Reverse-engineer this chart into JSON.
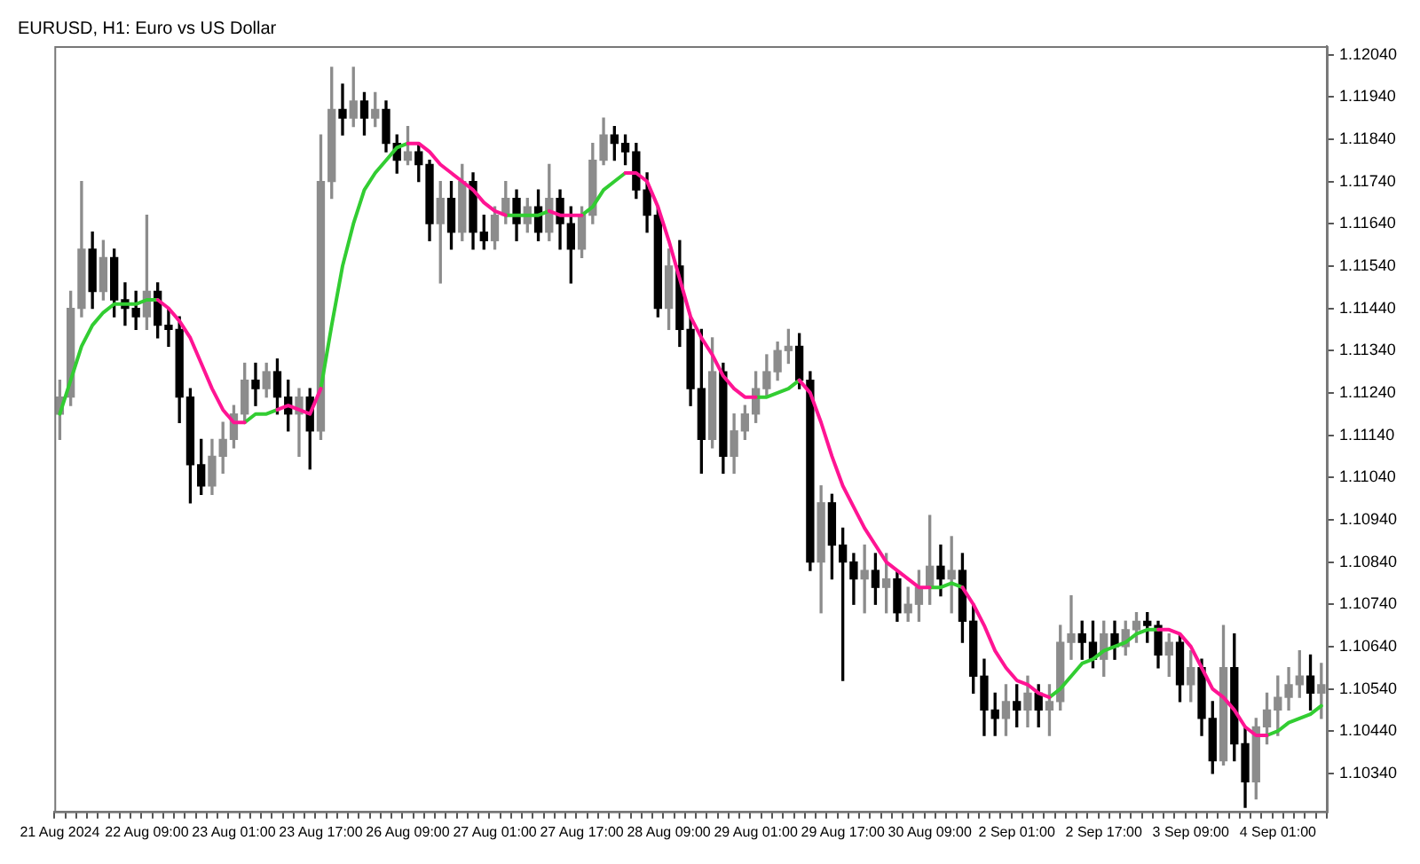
{
  "chart_data": {
    "type": "candlestick",
    "title": "EURUSD, H1: Euro vs US Dollar",
    "categories": [
      "21 Aug 2024",
      null,
      null,
      null,
      null,
      null,
      null,
      null,
      "22 Aug 09:00",
      null,
      null,
      null,
      null,
      null,
      null,
      null,
      "23 Aug 01:00",
      null,
      null,
      null,
      null,
      null,
      null,
      null,
      "23 Aug 17:00",
      null,
      null,
      null,
      null,
      null,
      null,
      null,
      "26 Aug 09:00",
      null,
      null,
      null,
      null,
      null,
      null,
      null,
      "27 Aug 01:00",
      null,
      null,
      null,
      null,
      null,
      null,
      null,
      "27 Aug 17:00",
      null,
      null,
      null,
      null,
      null,
      null,
      null,
      "28 Aug 09:00",
      null,
      null,
      null,
      null,
      null,
      null,
      null,
      "29 Aug 01:00",
      null,
      null,
      null,
      null,
      null,
      null,
      null,
      "29 Aug 17:00",
      null,
      null,
      null,
      null,
      null,
      null,
      null,
      "30 Aug 09:00",
      null,
      null,
      null,
      null,
      null,
      null,
      null,
      "2 Sep 01:00",
      null,
      null,
      null,
      null,
      null,
      null,
      null,
      "2 Sep 17:00",
      null,
      null,
      null,
      null,
      null,
      null,
      null,
      "3 Sep 09:00",
      null,
      null,
      null,
      null,
      null,
      null,
      null,
      "4 Sep 01:00",
      null,
      null,
      null,
      null
    ],
    "ohlc": [
      [
        1.1119,
        1.1127,
        1.1113,
        1.1123
      ],
      [
        1.1123,
        1.1148,
        1.1121,
        1.1144
      ],
      [
        1.1144,
        1.1174,
        1.1142,
        1.1158
      ],
      [
        1.1158,
        1.1162,
        1.1144,
        1.1148
      ],
      [
        1.1148,
        1.116,
        1.1146,
        1.1156
      ],
      [
        1.1156,
        1.1158,
        1.1142,
        1.1146
      ],
      [
        1.1146,
        1.115,
        1.114,
        1.1144
      ],
      [
        1.1144,
        1.1148,
        1.1139,
        1.1142
      ],
      [
        1.1142,
        1.1166,
        1.1139,
        1.1148
      ],
      [
        1.1148,
        1.115,
        1.1137,
        1.114
      ],
      [
        1.114,
        1.1144,
        1.1135,
        1.1139
      ],
      [
        1.1139,
        1.1142,
        1.1117,
        1.1123
      ],
      [
        1.1123,
        1.1125,
        1.1098,
        1.1107
      ],
      [
        1.1107,
        1.1113,
        1.11,
        1.1102
      ],
      [
        1.1102,
        1.1113,
        1.11,
        1.1109
      ],
      [
        1.1109,
        1.1117,
        1.1105,
        1.1113
      ],
      [
        1.1113,
        1.1121,
        1.1111,
        1.1119
      ],
      [
        1.1119,
        1.1131,
        1.1117,
        1.1127
      ],
      [
        1.1127,
        1.1131,
        1.1121,
        1.1125
      ],
      [
        1.1125,
        1.1131,
        1.1123,
        1.1129
      ],
      [
        1.1129,
        1.1132,
        1.1119,
        1.1123
      ],
      [
        1.1123,
        1.1127,
        1.1115,
        1.1119
      ],
      [
        1.1119,
        1.1125,
        1.1109,
        1.1123
      ],
      [
        1.1123,
        1.1125,
        1.1106,
        1.1115
      ],
      [
        1.1115,
        1.1185,
        1.1113,
        1.1174
      ],
      [
        1.1174,
        1.1201,
        1.117,
        1.1191
      ],
      [
        1.1191,
        1.1197,
        1.1185,
        1.1189
      ],
      [
        1.1189,
        1.1201,
        1.1187,
        1.1193
      ],
      [
        1.1193,
        1.1195,
        1.1185,
        1.1189
      ],
      [
        1.1189,
        1.1195,
        1.1187,
        1.1191
      ],
      [
        1.1191,
        1.1193,
        1.1181,
        1.1183
      ],
      [
        1.1183,
        1.1185,
        1.1176,
        1.1179
      ],
      [
        1.1179,
        1.1187,
        1.1178,
        1.1181
      ],
      [
        1.1181,
        1.1183,
        1.1174,
        1.1178
      ],
      [
        1.1178,
        1.1179,
        1.116,
        1.1164
      ],
      [
        1.1164,
        1.1174,
        1.115,
        1.117
      ],
      [
        1.117,
        1.1174,
        1.1158,
        1.1162
      ],
      [
        1.1162,
        1.1178,
        1.116,
        1.1174
      ],
      [
        1.1174,
        1.1176,
        1.1158,
        1.1162
      ],
      [
        1.1162,
        1.1166,
        1.1158,
        1.116
      ],
      [
        1.116,
        1.1168,
        1.1158,
        1.1166
      ],
      [
        1.1166,
        1.1174,
        1.1164,
        1.117
      ],
      [
        1.117,
        1.1172,
        1.116,
        1.1164
      ],
      [
        1.1164,
        1.117,
        1.1162,
        1.1168
      ],
      [
        1.1168,
        1.1172,
        1.116,
        1.1162
      ],
      [
        1.1162,
        1.1178,
        1.116,
        1.117
      ],
      [
        1.117,
        1.1172,
        1.1158,
        1.1164
      ],
      [
        1.1164,
        1.1168,
        1.115,
        1.1158
      ],
      [
        1.1158,
        1.1168,
        1.1156,
        1.1166
      ],
      [
        1.1166,
        1.1183,
        1.1164,
        1.1179
      ],
      [
        1.1179,
        1.1189,
        1.1178,
        1.1185
      ],
      [
        1.1185,
        1.1187,
        1.1179,
        1.1183
      ],
      [
        1.1183,
        1.1185,
        1.1178,
        1.1181
      ],
      [
        1.1181,
        1.1183,
        1.117,
        1.1172
      ],
      [
        1.1172,
        1.1176,
        1.1162,
        1.1166
      ],
      [
        1.1166,
        1.1168,
        1.1142,
        1.1144
      ],
      [
        1.1144,
        1.1158,
        1.1139,
        1.1154
      ],
      [
        1.1154,
        1.116,
        1.1135,
        1.1139
      ],
      [
        1.1139,
        1.1142,
        1.1121,
        1.1125
      ],
      [
        1.1125,
        1.1139,
        1.1105,
        1.1113
      ],
      [
        1.1113,
        1.1137,
        1.1111,
        1.1129
      ],
      [
        1.1129,
        1.1131,
        1.1105,
        1.1109
      ],
      [
        1.1109,
        1.1119,
        1.1105,
        1.1115
      ],
      [
        1.1115,
        1.1121,
        1.1113,
        1.1119
      ],
      [
        1.1119,
        1.1129,
        1.1117,
        1.1125
      ],
      [
        1.1125,
        1.1133,
        1.1123,
        1.1129
      ],
      [
        1.1129,
        1.1136,
        1.1127,
        1.1134
      ],
      [
        1.1134,
        1.1139,
        1.1131,
        1.1135
      ],
      [
        1.1135,
        1.1138,
        1.1125,
        1.1127
      ],
      [
        1.1127,
        1.1129,
        1.1082,
        1.1084
      ],
      [
        1.1084,
        1.1102,
        1.1072,
        1.1098
      ],
      [
        1.1098,
        1.11,
        1.108,
        1.1088
      ],
      [
        1.1088,
        1.1092,
        1.1056,
        1.1084
      ],
      [
        1.1084,
        1.1086,
        1.1074,
        1.108
      ],
      [
        1.108,
        1.1088,
        1.1072,
        1.1082
      ],
      [
        1.1082,
        1.1086,
        1.1074,
        1.1078
      ],
      [
        1.1078,
        1.1086,
        1.1072,
        1.108
      ],
      [
        1.108,
        1.1082,
        1.107,
        1.1072
      ],
      [
        1.1072,
        1.1078,
        1.107,
        1.1074
      ],
      [
        1.1074,
        1.1082,
        1.107,
        1.1078
      ],
      [
        1.1078,
        1.1095,
        1.1074,
        1.1083
      ],
      [
        1.1083,
        1.1088,
        1.1076,
        1.108
      ],
      [
        1.108,
        1.109,
        1.1072,
        1.1082
      ],
      [
        1.1082,
        1.1086,
        1.1065,
        1.107
      ],
      [
        1.107,
        1.1074,
        1.1053,
        1.1057
      ],
      [
        1.1057,
        1.1061,
        1.1043,
        1.1049
      ],
      [
        1.1049,
        1.1053,
        1.1043,
        1.1047
      ],
      [
        1.1047,
        1.1055,
        1.1043,
        1.1051
      ],
      [
        1.1051,
        1.1055,
        1.1045,
        1.1049
      ],
      [
        1.1049,
        1.1057,
        1.1045,
        1.1053
      ],
      [
        1.1053,
        1.1055,
        1.1045,
        1.1049
      ],
      [
        1.1049,
        1.1055,
        1.1043,
        1.1051
      ],
      [
        1.1051,
        1.1069,
        1.1049,
        1.1065
      ],
      [
        1.1065,
        1.1076,
        1.1061,
        1.1067
      ],
      [
        1.1067,
        1.107,
        1.1061,
        1.1065
      ],
      [
        1.1065,
        1.107,
        1.1059,
        1.1061
      ],
      [
        1.1061,
        1.107,
        1.1057,
        1.1067
      ],
      [
        1.1067,
        1.107,
        1.1061,
        1.1064
      ],
      [
        1.1064,
        1.107,
        1.1062,
        1.1068
      ],
      [
        1.1068,
        1.1072,
        1.1065,
        1.107
      ],
      [
        1.107,
        1.1072,
        1.1065,
        1.1069
      ],
      [
        1.1069,
        1.107,
        1.1059,
        1.1062
      ],
      [
        1.1062,
        1.1067,
        1.1057,
        1.1065
      ],
      [
        1.1065,
        1.1067,
        1.1051,
        1.1055
      ],
      [
        1.1055,
        1.1063,
        1.1051,
        1.1059
      ],
      [
        1.1059,
        1.1061,
        1.1043,
        1.1047
      ],
      [
        1.1047,
        1.1051,
        1.1034,
        1.1037
      ],
      [
        1.1037,
        1.1069,
        1.1036,
        1.1059
      ],
      [
        1.1059,
        1.1067,
        1.1037,
        1.1041
      ],
      [
        1.1041,
        1.1045,
        1.1026,
        1.1032
      ],
      [
        1.1032,
        1.1047,
        1.1028,
        1.1045
      ],
      [
        1.1045,
        1.1053,
        1.1041,
        1.1049
      ],
      [
        1.1049,
        1.1057,
        1.1043,
        1.1052
      ],
      [
        1.1052,
        1.1059,
        1.1049,
        1.1055
      ],
      [
        1.1055,
        1.1063,
        1.1052,
        1.1057
      ],
      [
        1.1057,
        1.1062,
        1.1049,
        1.1053
      ],
      [
        1.1053,
        1.106,
        1.1047,
        1.1055
      ]
    ],
    "series": [
      {
        "type": "line",
        "color": "#32cd32",
        "values": [
          1.1119,
          1.1127,
          1.1135,
          1.114,
          1.1143,
          1.1145,
          1.1145,
          1.1145,
          1.1146,
          1.1146,
          null,
          null,
          null,
          null,
          null,
          null,
          null,
          1.1117,
          1.1119,
          1.1119,
          1.112,
          null,
          null,
          null,
          1.1125,
          1.114,
          1.1154,
          1.1164,
          1.1172,
          1.1176,
          1.1179,
          1.1182,
          1.1183,
          null,
          null,
          null,
          null,
          null,
          null,
          null,
          null,
          1.1166,
          1.1166,
          1.1166,
          1.1166,
          1.1167,
          null,
          null,
          1.1166,
          1.1168,
          1.1172,
          1.1174,
          1.1176,
          null,
          null,
          null,
          null,
          null,
          null,
          null,
          null,
          null,
          null,
          null,
          1.1123,
          1.1123,
          1.1124,
          1.1125,
          1.1127,
          null,
          null,
          null,
          null,
          null,
          null,
          null,
          null,
          null,
          null,
          null,
          1.1078,
          1.1078,
          1.1079,
          1.1078,
          null,
          null,
          null,
          null,
          null,
          null,
          null,
          1.1052,
          1.1054,
          1.1057,
          1.106,
          1.1061,
          1.1063,
          1.1064,
          1.1065,
          1.1067,
          1.1068,
          1.1068,
          null,
          null,
          null,
          null,
          null,
          null,
          null,
          null,
          null,
          1.1043,
          1.1044,
          1.1046,
          1.1047,
          1.1048,
          1.105
        ]
      },
      {
        "type": "line",
        "color": "#ff1493",
        "values": [
          null,
          null,
          null,
          null,
          null,
          null,
          null,
          null,
          null,
          1.1146,
          1.1144,
          1.1141,
          1.1137,
          1.1131,
          1.1125,
          1.112,
          1.1117,
          1.1117,
          null,
          null,
          1.112,
          1.1121,
          1.112,
          1.1119,
          1.1125,
          null,
          null,
          null,
          null,
          null,
          null,
          null,
          1.1183,
          1.1183,
          1.1181,
          1.1178,
          1.1176,
          1.1174,
          1.1172,
          1.1169,
          1.1167,
          1.1166,
          null,
          null,
          null,
          1.1167,
          1.1166,
          1.1166,
          1.1166,
          null,
          null,
          null,
          1.1176,
          1.1176,
          1.1174,
          1.1168,
          1.116,
          1.1151,
          1.1142,
          1.1137,
          1.1133,
          1.1128,
          1.1125,
          1.1123,
          1.1123,
          null,
          null,
          null,
          1.1127,
          1.1124,
          1.1117,
          1.1109,
          1.1102,
          1.1097,
          1.1092,
          1.1088,
          1.1084,
          1.1082,
          1.108,
          1.1078,
          1.1078,
          null,
          null,
          1.1078,
          1.1074,
          1.1069,
          1.1063,
          1.1059,
          1.1056,
          1.1055,
          1.1053,
          1.1052,
          null,
          null,
          null,
          null,
          null,
          null,
          null,
          null,
          null,
          1.1068,
          1.1068,
          1.1067,
          1.1064,
          1.1059,
          1.1054,
          1.1052,
          1.1049,
          1.1045,
          1.1043,
          1.1043,
          null,
          null,
          null,
          null,
          null
        ]
      }
    ],
    "ylim": [
      1.1025,
      1.1206
    ],
    "yticks": [
      {
        "value": 1.1034,
        "label": "1.10340"
      },
      {
        "value": 1.1044,
        "label": "1.10440"
      },
      {
        "value": 1.1054,
        "label": "1.10540"
      },
      {
        "value": 1.1064,
        "label": "1.10640"
      },
      {
        "value": 1.1074,
        "label": "1.10740"
      },
      {
        "value": 1.1084,
        "label": "1.10840"
      },
      {
        "value": 1.1094,
        "label": "1.10940"
      },
      {
        "value": 1.1104,
        "label": "1.11040"
      },
      {
        "value": 1.1114,
        "label": "1.11140"
      },
      {
        "value": 1.1124,
        "label": "1.11240"
      },
      {
        "value": 1.1134,
        "label": "1.11340"
      },
      {
        "value": 1.1144,
        "label": "1.11440"
      },
      {
        "value": 1.1154,
        "label": "1.11540"
      },
      {
        "value": 1.1164,
        "label": "1.11640"
      },
      {
        "value": 1.1174,
        "label": "1.11740"
      },
      {
        "value": 1.1184,
        "label": "1.11840"
      },
      {
        "value": 1.1194,
        "label": "1.11940"
      },
      {
        "value": 1.1204,
        "label": "1.12040"
      }
    ]
  }
}
